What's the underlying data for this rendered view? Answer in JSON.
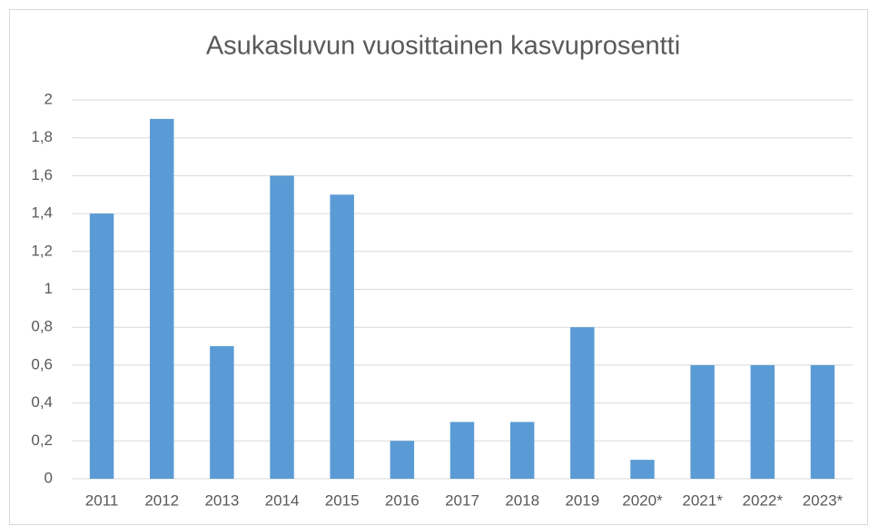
{
  "chart_data": {
    "type": "bar",
    "title": "Asukasluvun vuosittainen kasvuprosentti",
    "categories": [
      "2011",
      "2012",
      "2013",
      "2014",
      "2015",
      "2016",
      "2017",
      "2018",
      "2019",
      "2020*",
      "2021*",
      "2022*",
      "2023*"
    ],
    "values": [
      1.4,
      1.9,
      0.7,
      1.6,
      1.5,
      0.2,
      0.3,
      0.3,
      0.8,
      0.1,
      0.6,
      0.6,
      0.6
    ],
    "color": "#5b9bd5",
    "ylim": [
      0,
      2
    ],
    "yticks": [
      0,
      {
        "value": 0.2,
        "label": "0,2"
      },
      {
        "value": 0.4,
        "label": "0,4"
      },
      {
        "value": 0.6,
        "label": "0,6"
      },
      {
        "value": 0.8,
        "label": "0,8"
      },
      1,
      {
        "value": 1.2,
        "label": "1,2"
      },
      {
        "value": 1.4,
        "label": "1,4"
      },
      {
        "value": 1.6,
        "label": "1,6"
      },
      {
        "value": 1.8,
        "label": "1,8"
      },
      2
    ],
    "grid": true
  }
}
